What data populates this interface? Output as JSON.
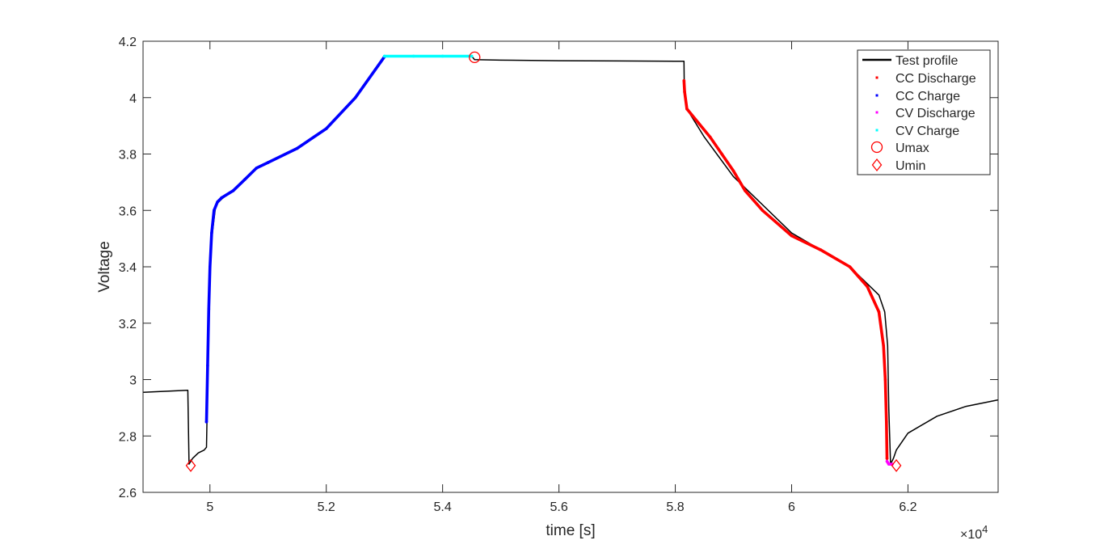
{
  "chart_data": {
    "type": "line",
    "title": "",
    "xlabel": "time [s]",
    "ylabel": "Voltage",
    "x_exponent_label": "×10",
    "x_exponent_power": "4",
    "xlim": [
      4.885,
      6.355
    ],
    "ylim": [
      2.6,
      4.2
    ],
    "x_tick_values": [
      5.0,
      5.2,
      5.4,
      5.6,
      5.8,
      6.0,
      6.2
    ],
    "x_tick_labels": [
      "5",
      "5.2",
      "5.4",
      "5.6",
      "5.8",
      "6",
      "6.2"
    ],
    "y_tick_values": [
      2.6,
      2.8,
      3.0,
      3.2,
      3.4,
      3.6,
      3.8,
      4.0,
      4.2
    ],
    "y_tick_labels": [
      "2.6",
      "2.8",
      "3",
      "3.2",
      "3.4",
      "3.6",
      "3.8",
      "4",
      "4.2"
    ],
    "grid": false,
    "legend_position": "top-right",
    "colors": {
      "test_profile": "#000000",
      "cc_discharge": "#ff0000",
      "cc_charge": "#0000ff",
      "cv_discharge": "#ff00ff",
      "cv_charge": "#00ffff",
      "umax": "#ff0000",
      "umin": "#ff0000"
    },
    "series": [
      {
        "name": "Test profile",
        "style": "line",
        "x": [
          4.885,
          4.96,
          4.962,
          4.964,
          4.97,
          4.98,
          4.99,
          4.994,
          4.995,
          4.997,
          5.0,
          5.01,
          5.02,
          5.05,
          5.08,
          5.1,
          5.15,
          5.2,
          5.25,
          5.3,
          5.35,
          5.4,
          5.45,
          5.455,
          5.5,
          5.6,
          5.7,
          5.8,
          5.815,
          5.8155,
          5.82,
          5.85,
          5.9,
          6.0,
          6.1,
          6.15,
          6.16,
          6.165,
          6.167,
          6.17,
          6.175,
          6.18,
          6.2,
          6.25,
          6.3,
          6.355
        ],
        "y": [
          2.955,
          2.962,
          2.962,
          2.7,
          2.72,
          2.74,
          2.75,
          2.76,
          2.87,
          3.1,
          3.45,
          3.62,
          3.64,
          3.69,
          3.75,
          3.77,
          3.82,
          3.89,
          4.0,
          4.145,
          4.147,
          4.147,
          4.147,
          4.135,
          4.133,
          4.131,
          4.13,
          4.129,
          4.129,
          4.03,
          3.96,
          3.86,
          3.72,
          3.52,
          3.4,
          3.3,
          3.24,
          3.12,
          2.9,
          2.7,
          2.72,
          2.75,
          2.81,
          2.87,
          2.905,
          2.928
        ]
      },
      {
        "name": "CC Discharge",
        "style": "dots",
        "x": [
          5.815,
          5.816,
          5.82,
          5.84,
          5.86,
          5.88,
          5.9,
          5.92,
          5.95,
          6.0,
          6.05,
          6.1,
          6.13,
          6.15,
          6.158,
          6.161,
          6.163,
          6.164
        ],
        "y": [
          4.06,
          4.02,
          3.96,
          3.91,
          3.86,
          3.8,
          3.74,
          3.67,
          3.6,
          3.51,
          3.46,
          3.4,
          3.33,
          3.24,
          3.12,
          3.0,
          2.85,
          2.72
        ]
      },
      {
        "name": "CC Charge",
        "style": "dots",
        "x": [
          4.994,
          4.996,
          4.998,
          5.0,
          5.003,
          5.007,
          5.013,
          5.02,
          5.04,
          5.06,
          5.08,
          5.1,
          5.15,
          5.2,
          5.25,
          5.3
        ],
        "y": [
          2.85,
          3.05,
          3.25,
          3.4,
          3.52,
          3.6,
          3.63,
          3.645,
          3.67,
          3.71,
          3.75,
          3.77,
          3.82,
          3.89,
          4.0,
          4.145
        ]
      },
      {
        "name": "CV Discharge",
        "style": "dots",
        "x": [
          6.164,
          6.167,
          6.17,
          6.173
        ],
        "y": [
          2.71,
          2.7,
          2.7,
          2.7
        ]
      },
      {
        "name": "CV Charge",
        "style": "dots",
        "x": [
          5.3,
          5.35,
          5.4,
          5.45
        ],
        "y": [
          4.147,
          4.147,
          4.147,
          4.147
        ]
      },
      {
        "name": "Umax",
        "style": "circle",
        "x": [
          5.455
        ],
        "y": [
          4.143
        ]
      },
      {
        "name": "Umin",
        "style": "diamond",
        "x": [
          4.967,
          6.18
        ],
        "y": [
          2.695,
          2.695
        ]
      }
    ]
  }
}
